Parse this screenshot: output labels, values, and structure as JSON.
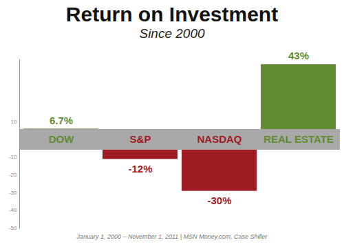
{
  "chart_data": {
    "type": "bar",
    "title": "Return on Investment",
    "subtitle": "Since 2000",
    "caption": "January 1, 2000 – November 1, 2011  |  MSN Money.com, Case Shiller",
    "categories": [
      "DOW",
      "S&P",
      "NASDAQ",
      "REAL ESTATE"
    ],
    "values": [
      6.7,
      -12,
      -30,
      43
    ],
    "value_labels": [
      "6.7%",
      "-12%",
      "-30%",
      "43%"
    ],
    "colors": [
      "#5f8c2f",
      "#9e1b24",
      "#9e1b24",
      "#5f8c2f"
    ],
    "ylim": [
      -50,
      45
    ],
    "yticks": [
      -50,
      -40,
      -30,
      -20,
      -10,
      10
    ],
    "grid": false,
    "data_labels": true,
    "tick_labels": "y"
  }
}
